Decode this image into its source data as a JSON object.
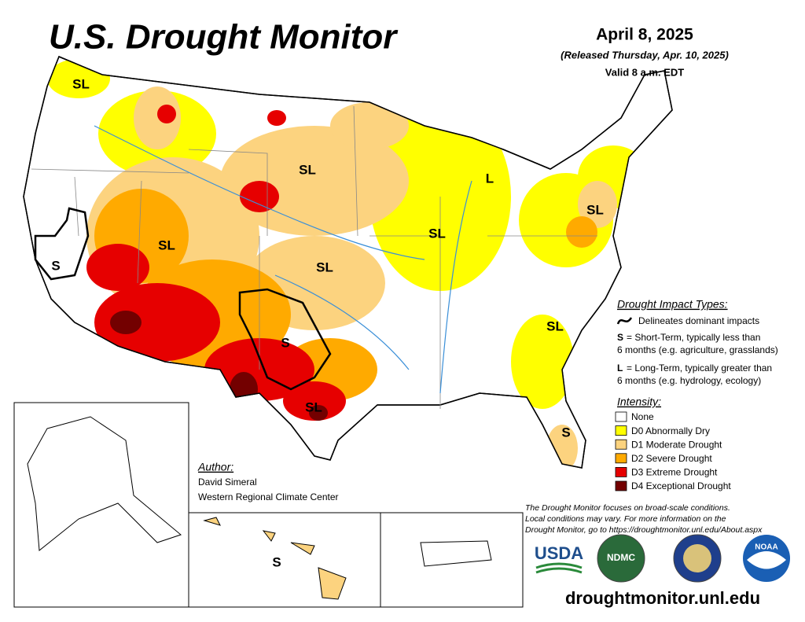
{
  "header": {
    "title": "U.S. Drought Monitor",
    "date": "April 8, 2025",
    "released": "(Released Thursday, Apr. 10, 2025)",
    "valid": "Valid 8 a.m. EDT"
  },
  "impact_types": {
    "title": "Drought Impact Types:",
    "delineates": "Delineates dominant impacts",
    "short_term": {
      "key": "S",
      "lines": [
        "= Short-Term, typically less than",
        "6 months (e.g. agriculture, grasslands)"
      ]
    },
    "long_term": {
      "key": "L",
      "lines": [
        "= Long-Term, typically greater than",
        "6 months (e.g. hydrology, ecology)"
      ]
    }
  },
  "intensity": {
    "title": "Intensity:",
    "levels": [
      {
        "label": "None",
        "color": "#ffffff"
      },
      {
        "label": "D0 Abnormally Dry",
        "color": "#ffff00"
      },
      {
        "label": "D1 Moderate Drought",
        "color": "#fcd37f"
      },
      {
        "label": "D2 Severe Drought",
        "color": "#ffaa00"
      },
      {
        "label": "D3 Extreme Drought",
        "color": "#e60000"
      },
      {
        "label": "D4 Exceptional Drought",
        "color": "#730000"
      }
    ]
  },
  "author": {
    "title": "Author:",
    "name": "David Simeral",
    "org": "Western Regional Climate Center"
  },
  "note": [
    "The Drought Monitor focuses on broad-scale conditions.",
    "Local conditions may vary. For more information on the",
    "Drought Monitor, go to https://droughtmonitor.unl.edu/About.aspx"
  ],
  "logos": [
    "USDA",
    "NDMC",
    "NOAA"
  ],
  "url": "droughtmonitor.unl.edu",
  "map_labels": [
    "SL",
    "SL",
    "L",
    "SL",
    "SL",
    "SL",
    "SL",
    "S",
    "SL",
    "S",
    "SL",
    "S",
    "S"
  ]
}
